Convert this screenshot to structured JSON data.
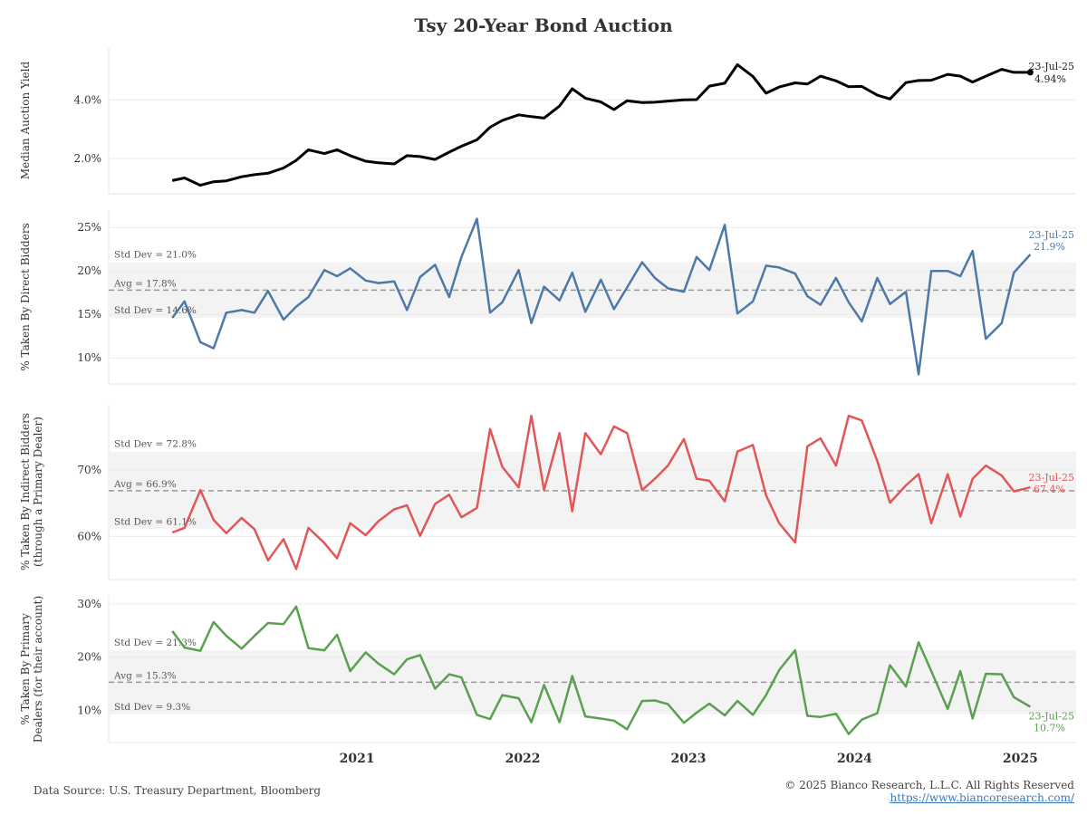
{
  "title": "Tsy 20-Year Bond Auction",
  "footer": {
    "source": "Data Source: U.S. Treasury Department, Bloomberg",
    "copyright": "© 2025 Bianco Research, L.L.C. All Rights Reserved",
    "url": "https://www.biancoresearch.com/"
  },
  "chart_data": {
    "type": "line",
    "x_axis": {
      "ticks": [
        "2021",
        "2022",
        "2023",
        "2024",
        "2025"
      ],
      "range": [
        "2020-01-01",
        "2025-11-01"
      ]
    },
    "x": [
      "2020-05-20",
      "2020-06-16",
      "2020-07-21",
      "2020-08-19",
      "2020-09-16",
      "2020-10-20",
      "2020-11-17",
      "2020-12-17",
      "2021-01-20",
      "2021-02-17",
      "2021-03-16",
      "2021-04-20",
      "2021-05-18",
      "2021-06-16",
      "2021-07-20",
      "2021-08-17",
      "2021-09-21",
      "2021-10-19",
      "2021-11-17",
      "2021-12-20",
      "2022-01-20",
      "2022-02-16",
      "2022-03-22",
      "2022-04-20",
      "2022-05-17",
      "2022-06-22",
      "2022-07-20",
      "2022-08-17",
      "2022-09-20",
      "2022-10-18",
      "2022-11-16",
      "2022-12-20",
      "2023-01-18",
      "2023-02-16",
      "2023-03-21",
      "2023-04-18",
      "2023-05-17",
      "2023-06-21",
      "2023-07-19",
      "2023-08-16",
      "2023-09-19",
      "2023-10-17",
      "2023-11-20",
      "2023-12-19",
      "2024-01-17",
      "2024-02-21",
      "2024-03-19",
      "2024-04-17",
      "2024-05-21",
      "2024-06-18",
      "2024-07-17",
      "2024-08-20",
      "2024-09-17",
      "2024-10-22",
      "2024-11-19",
      "2024-12-17",
      "2025-01-22",
      "2025-02-19",
      "2025-03-18",
      "2025-04-16",
      "2025-05-21",
      "2025-06-17",
      "2025-07-23"
    ],
    "panels": [
      {
        "ylabel": "Median Auction Yield",
        "color": "#000000",
        "ylim": [
          0.8,
          5.8
        ],
        "yticks": [
          2.0,
          4.0
        ],
        "ytick_labels": [
          "2.0%",
          "4.0%"
        ],
        "values": [
          1.25,
          1.34,
          1.09,
          1.21,
          1.24,
          1.38,
          1.45,
          1.5,
          1.68,
          1.94,
          2.3,
          2.17,
          2.3,
          2.1,
          1.91,
          1.86,
          1.82,
          2.1,
          2.07,
          1.97,
          2.22,
          2.42,
          2.64,
          3.07,
          3.3,
          3.49,
          3.43,
          3.38,
          3.79,
          4.38,
          4.06,
          3.93,
          3.67,
          3.97,
          3.91,
          3.92,
          3.96,
          4.0,
          4.01,
          4.47,
          4.57,
          5.2,
          4.8,
          4.23,
          4.44,
          4.58,
          4.54,
          4.81,
          4.65,
          4.45,
          4.46,
          4.16,
          4.03,
          4.59,
          4.66,
          4.67,
          4.87,
          4.81,
          4.61,
          4.81,
          5.04,
          4.94,
          4.94
        ],
        "end_label": {
          "date": "23-Jul-25",
          "value": "4.94%"
        }
      },
      {
        "ylabel": "% Taken By Direct Bidders",
        "color": "#4e79a7",
        "ylim": [
          7.0,
          27.0
        ],
        "yticks": [
          10,
          15,
          20,
          25
        ],
        "ytick_labels": [
          "10%",
          "15%",
          "20%",
          "25%"
        ],
        "avg": 17.8,
        "std_hi": 21.0,
        "std_lo": 14.6,
        "avg_label": "Avg = 17.8%",
        "std_hi_label": "Std Dev = 21.0%",
        "std_lo_label": "Std Dev = 14.6%",
        "values": [
          14.6,
          16.5,
          11.8,
          11.1,
          15.2,
          15.5,
          15.2,
          17.7,
          14.4,
          15.9,
          17.0,
          20.1,
          19.4,
          20.3,
          18.9,
          18.6,
          18.8,
          15.5,
          19.3,
          20.7,
          17.0,
          21.6,
          26.0,
          15.2,
          16.4,
          20.1,
          14.0,
          18.2,
          16.6,
          19.8,
          15.3,
          19.0,
          15.6,
          18.1,
          21.0,
          19.2,
          18.0,
          17.6,
          21.6,
          20.1,
          25.3,
          15.1,
          16.5,
          20.6,
          20.4,
          19.7,
          17.1,
          16.1,
          19.2,
          16.4,
          14.2,
          19.2,
          16.2,
          17.6,
          8.1,
          20.0,
          20.0,
          19.4,
          22.3,
          12.2,
          14.0,
          19.8,
          21.9
        ],
        "end_label": {
          "date": "23-Jul-25",
          "value": "21.9%"
        }
      },
      {
        "ylabel": "% Taken By Indirect Bidders",
        "ylabel2": "(through a Primary Dealer)",
        "color": "#e15759",
        "ylim": [
          53.5,
          80.0
        ],
        "yticks": [
          60,
          70
        ],
        "ytick_labels": [
          "60%",
          "70%"
        ],
        "avg": 66.9,
        "std_hi": 72.8,
        "std_lo": 61.1,
        "avg_label": "Avg = 66.9%",
        "std_hi_label": "Std Dev = 72.8%",
        "std_lo_label": "Std Dev = 61.1%",
        "values": [
          60.6,
          61.3,
          67.0,
          62.5,
          60.5,
          62.8,
          61.1,
          56.4,
          59.6,
          55.1,
          61.3,
          59.0,
          56.7,
          62.0,
          60.2,
          62.3,
          64.1,
          64.7,
          60.1,
          64.9,
          66.3,
          62.9,
          64.3,
          76.2,
          70.5,
          67.4,
          78.2,
          67.0,
          75.6,
          63.8,
          75.6,
          72.4,
          76.6,
          75.6,
          67.0,
          68.7,
          70.7,
          74.7,
          68.7,
          68.4,
          65.3,
          72.8,
          73.8,
          66.2,
          62.0,
          59.1,
          73.6,
          74.8,
          70.7,
          78.2,
          77.5,
          71.4,
          65.1,
          67.7,
          69.4,
          62.0,
          69.4,
          63.0,
          68.7,
          70.7,
          69.2,
          66.8,
          67.4
        ],
        "end_label": {
          "date": "23-Jul-25",
          "value": "67.4%"
        }
      },
      {
        "ylabel": "% Taken By Primary",
        "ylabel2": "Dealers (for their account)",
        "color": "#59a14f",
        "ylim": [
          4.0,
          31.5
        ],
        "yticks": [
          10,
          20,
          30
        ],
        "ytick_labels": [
          "10%",
          "20%",
          "30%"
        ],
        "avg": 15.3,
        "std_hi": 21.3,
        "std_lo": 9.3,
        "avg_label": "Avg = 15.3%",
        "std_hi_label": "Std Dev = 21.3%",
        "std_lo_label": "Std Dev = 9.3%",
        "values": [
          24.9,
          21.8,
          21.2,
          26.6,
          24.0,
          21.6,
          24.0,
          26.4,
          26.2,
          29.5,
          21.7,
          21.3,
          24.2,
          17.4,
          20.9,
          18.8,
          16.8,
          19.6,
          20.4,
          14.1,
          16.8,
          16.2,
          9.2,
          8.4,
          12.9,
          12.3,
          7.8,
          14.8,
          7.8,
          16.5,
          8.9,
          8.5,
          8.1,
          6.5,
          11.8,
          11.9,
          11.2,
          7.7,
          9.6,
          11.3,
          9.1,
          11.8,
          9.2,
          12.9,
          17.6,
          21.3,
          9.0,
          8.8,
          9.4,
          5.6,
          8.3,
          9.5,
          18.5,
          14.5,
          22.8,
          17.4,
          10.3,
          17.4,
          8.5,
          16.9,
          16.8,
          12.5,
          10.7
        ],
        "end_label": {
          "date": "23-Jul-25",
          "value": "10.7%"
        }
      }
    ]
  }
}
